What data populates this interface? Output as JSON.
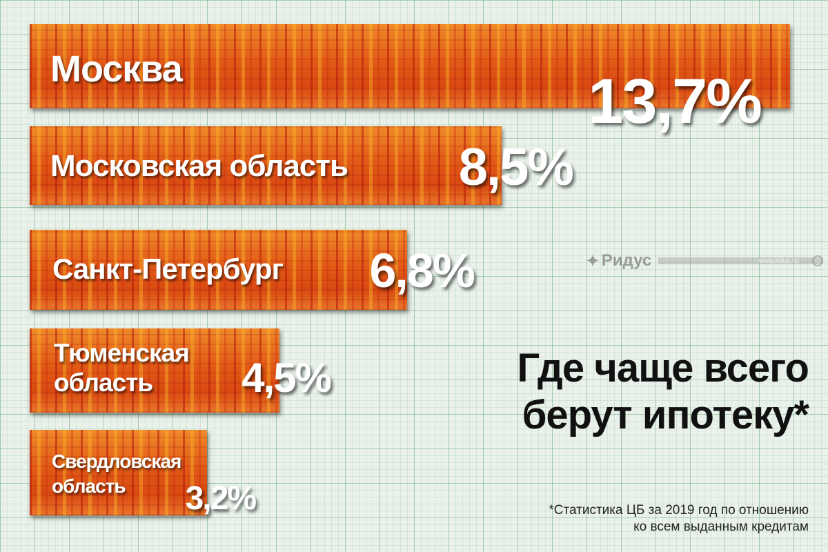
{
  "chart_data": {
    "type": "bar",
    "orientation": "horizontal",
    "categories": [
      "Москва",
      "Московская область",
      "Санкт-Петербург",
      "Тюменская область",
      "Свердловская область"
    ],
    "category_lines": [
      [
        "Москва"
      ],
      [
        "Московская область"
      ],
      [
        "Санкт-Петербург"
      ],
      [
        "Тюменская",
        "область"
      ],
      [
        "Свердловская",
        "область"
      ]
    ],
    "values": [
      13.7,
      8.5,
      6.8,
      4.5,
      3.2
    ],
    "value_labels": [
      "13,7%",
      "8,5%",
      "6,8%",
      "4,5%",
      "3,2%"
    ],
    "unit": "%",
    "bar_color": "#e2641a",
    "grid": true
  },
  "title_lines": [
    "Где чаще всего",
    "берут ипотеку*"
  ],
  "footnote_lines": [
    "*Статистика ЦБ за 2019 год по отношению",
    "ко всем выданным кредитам"
  ],
  "watermark": {
    "logo_icon": "ridus-logo-icon",
    "name": "Ридус",
    "site": "www.ridus.ru"
  }
}
